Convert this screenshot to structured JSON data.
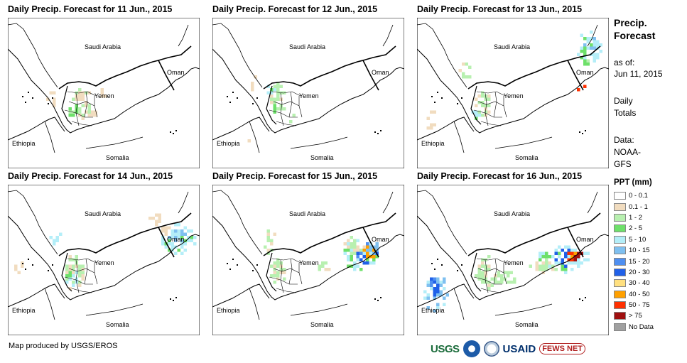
{
  "panels": [
    {
      "title": "Daily Precip. Forecast for 11 Jun., 2015",
      "day": 0
    },
    {
      "title": "Daily Precip. Forecast for 12 Jun., 2015",
      "day": 1
    },
    {
      "title": "Daily Precip. Forecast for 13 Jun., 2015",
      "day": 2
    },
    {
      "title": "Daily Precip. Forecast for 14 Jun., 2015",
      "day": 3
    },
    {
      "title": "Daily Precip. Forecast for 15 Jun., 2015",
      "day": 4
    },
    {
      "title": "Daily Precip. Forecast for 16 Jun., 2015",
      "day": 5
    }
  ],
  "labels": {
    "saudi": "Saudi Arabia",
    "oman": "Oman",
    "yemen": "Yemen",
    "ethiopia": "Ethiopia",
    "somalia": "Somalia"
  },
  "side": {
    "title": "Precip. Forecast",
    "asof_label": "as of:",
    "asof_date": "Jun 11, 2015",
    "totals_1": "Daily",
    "totals_2": "Totals",
    "data_1": "Data:",
    "data_2": "NOAA-",
    "data_3": "GFS"
  },
  "legend": {
    "title": "PPT (mm)",
    "items": [
      {
        "label": "0 - 0.1",
        "color": "#ffffff"
      },
      {
        "label": "0.1 - 1",
        "color": "#f1dcbf"
      },
      {
        "label": "1 - 2",
        "color": "#b8f0b0"
      },
      {
        "label": "2 - 5",
        "color": "#6ee06a"
      },
      {
        "label": "5 - 10",
        "color": "#b4eef8"
      },
      {
        "label": "10 - 15",
        "color": "#7fc0f0"
      },
      {
        "label": "15 - 20",
        "color": "#4f8ff0"
      },
      {
        "label": "20 - 30",
        "color": "#2060e8"
      },
      {
        "label": "30 - 40",
        "color": "#ffe080"
      },
      {
        "label": "40 - 50",
        "color": "#ffa000"
      },
      {
        "label": "50 - 75",
        "color": "#ff3000"
      },
      {
        "label": "> 75",
        "color": "#a01010"
      },
      {
        "label": "No Data",
        "color": "#a0a0a0"
      }
    ]
  },
  "credit": "Map produced by USGS/EROS",
  "logos": {
    "usgs": "USGS",
    "usaid": "USAID",
    "fews": "FEWS NET"
  }
}
